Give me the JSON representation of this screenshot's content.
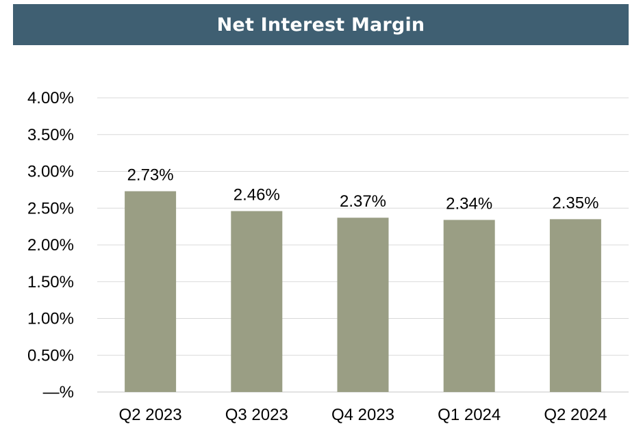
{
  "chart_data": {
    "type": "bar",
    "title": "Net Interest Margin",
    "categories": [
      "Q2 2023",
      "Q3 2023",
      "Q4 2023",
      "Q1 2024",
      "Q2 2024"
    ],
    "values": [
      2.73,
      2.46,
      2.37,
      2.34,
      2.35
    ],
    "data_labels": [
      "2.73%",
      "2.46%",
      "2.37%",
      "2.34%",
      "2.35%"
    ],
    "y_tick_values": [
      0,
      0.5,
      1.0,
      1.5,
      2.0,
      2.5,
      3.0,
      3.5,
      4.0
    ],
    "y_tick_labels": [
      "—%",
      "0.50%",
      "1.00%",
      "1.50%",
      "2.00%",
      "2.50%",
      "3.00%",
      "3.50%",
      "4.00%"
    ],
    "ylim": [
      0,
      4.0
    ],
    "xlabel": "",
    "ylabel": "",
    "grid": true,
    "legend": "none",
    "colors": {
      "bar": "#9a9e84",
      "title_background": "#3f5f72",
      "title_text": "#ffffff",
      "grid": "#d9d9d9"
    }
  }
}
